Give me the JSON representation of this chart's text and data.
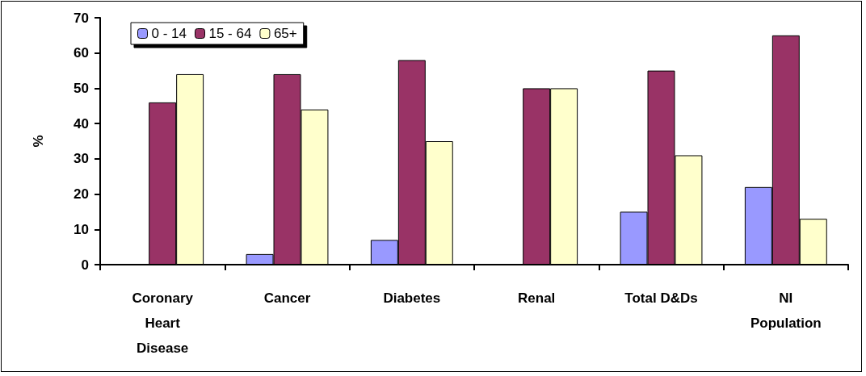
{
  "chart_data": {
    "type": "bar",
    "ylabel": "%",
    "categories": [
      "Coronary\nHeart\nDisease",
      "Cancer",
      "Diabetes",
      "Renal",
      "Total D&Ds",
      "NI\nPopulation"
    ],
    "series": [
      {
        "name": "0 - 14",
        "color": "#9999ff",
        "values": [
          null,
          3,
          7,
          null,
          15,
          22
        ]
      },
      {
        "name": "15 - 64",
        "color": "#993366",
        "values": [
          46,
          54,
          58,
          50,
          55,
          65
        ]
      },
      {
        "name": "65+",
        "color": "#ffffcc",
        "values": [
          54,
          44,
          35,
          50,
          31,
          13
        ]
      }
    ],
    "ylim": [
      0,
      70
    ],
    "yticks": [
      0,
      10,
      20,
      30,
      40,
      50,
      60,
      70
    ],
    "grid": false,
    "legend": "top left"
  }
}
